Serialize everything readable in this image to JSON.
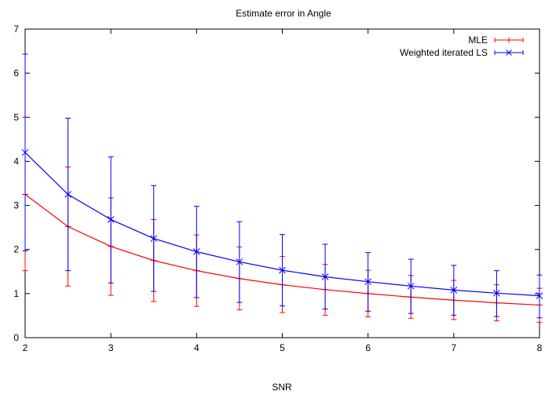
{
  "chart_data": {
    "type": "line",
    "title": "Estimate error in Angle",
    "xlabel": "SNR",
    "ylabel": "",
    "xlim": [
      2,
      8
    ],
    "ylim": [
      0,
      7
    ],
    "xticks": [
      2,
      3,
      4,
      5,
      6,
      7,
      8
    ],
    "yticks": [
      0,
      1,
      2,
      3,
      4,
      5,
      6,
      7
    ],
    "grid": false,
    "legend_position": "top-right",
    "x": [
      2,
      2.5,
      3,
      3.5,
      4,
      4.5,
      5,
      5.5,
      6,
      6.5,
      7,
      7.5,
      8
    ],
    "series": [
      {
        "name": "MLE",
        "color": "#ff0000",
        "marker": "plus",
        "values": [
          3.25,
          2.52,
          2.07,
          1.75,
          1.52,
          1.34,
          1.2,
          1.09,
          1.0,
          0.92,
          0.85,
          0.79,
          0.74
        ],
        "err_low": [
          1.52,
          1.17,
          0.96,
          0.82,
          0.71,
          0.63,
          0.57,
          0.51,
          0.47,
          0.44,
          0.41,
          0.38,
          0.35
        ],
        "err_high": [
          5.0,
          3.87,
          3.17,
          2.68,
          2.33,
          2.06,
          1.84,
          1.66,
          1.53,
          1.41,
          1.3,
          1.2,
          1.12
        ]
      },
      {
        "name": "Weighted iterated LS",
        "color": "#0000ff",
        "marker": "x",
        "values": [
          4.2,
          3.25,
          2.68,
          2.25,
          1.95,
          1.72,
          1.53,
          1.38,
          1.27,
          1.17,
          1.08,
          1.01,
          0.95
        ],
        "err_low": [
          1.97,
          1.52,
          1.24,
          1.05,
          0.91,
          0.8,
          0.72,
          0.65,
          0.6,
          0.55,
          0.51,
          0.48,
          0.45
        ],
        "err_high": [
          6.43,
          4.98,
          4.1,
          3.45,
          2.98,
          2.63,
          2.34,
          2.12,
          1.93,
          1.78,
          1.64,
          1.52,
          1.42
        ]
      }
    ]
  }
}
